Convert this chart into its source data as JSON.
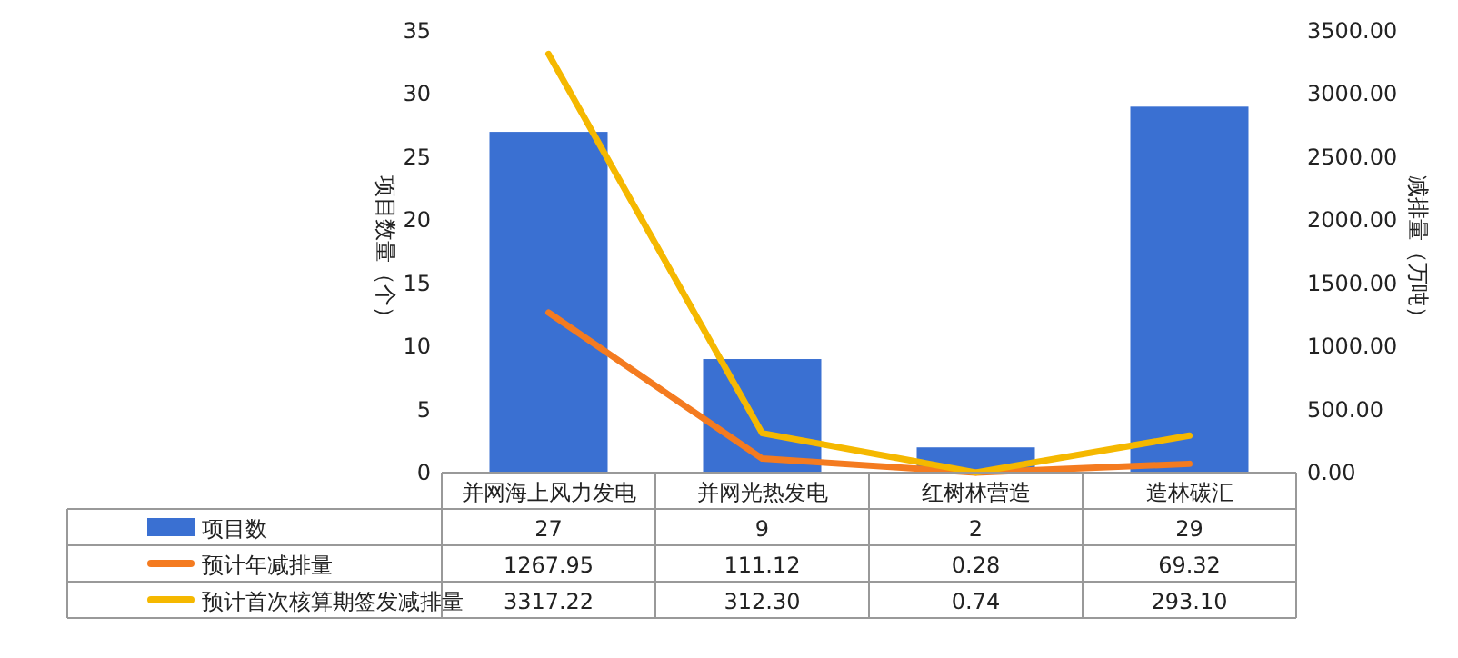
{
  "chart_data": {
    "type": "bar",
    "categories": [
      "并网海上风力发电",
      "并网光热发电",
      "红树林营造",
      "造林碳汇"
    ],
    "series": [
      {
        "name": "项目数",
        "color": "#3a70d2",
        "values": [
          27,
          9,
          2,
          29
        ],
        "value_labels": [
          "27",
          "9",
          "2",
          "29"
        ]
      },
      {
        "name": "预计年减排量",
        "type": "line",
        "axis": "y2",
        "color": "#f47b20",
        "values": [
          1267.95,
          111.12,
          0.28,
          69.32
        ],
        "value_labels": [
          "1267.95",
          "111.12",
          "0.28",
          "69.32"
        ]
      },
      {
        "name": "预计首次核算期签发减排量",
        "type": "line",
        "axis": "y2",
        "color": "#f5b800",
        "values": [
          3317.22,
          312.3,
          0.74,
          293.1
        ],
        "value_labels": [
          "3317.22",
          "312.30",
          "0.74",
          "293.10"
        ]
      }
    ],
    "ylabel": "项目数量（个）",
    "y2label": "减排量（万吨）",
    "ylim": [
      0,
      35
    ],
    "yticks": [
      0,
      5,
      10,
      15,
      20,
      25,
      30,
      35
    ],
    "y2lim": [
      0,
      3500
    ],
    "y2ticks": [
      {
        "value": 0,
        "label": "0.00"
      },
      {
        "value": 500,
        "label": "500.00"
      },
      {
        "value": 1000,
        "label": "1000.00"
      },
      {
        "value": 1500,
        "label": "1500.00"
      },
      {
        "value": 2000,
        "label": "2000.00"
      },
      {
        "value": 2500,
        "label": "2500.00"
      },
      {
        "value": 3000,
        "label": "3000.00"
      },
      {
        "value": 3500,
        "label": "3500.00"
      }
    ],
    "legend": "bottom"
  }
}
